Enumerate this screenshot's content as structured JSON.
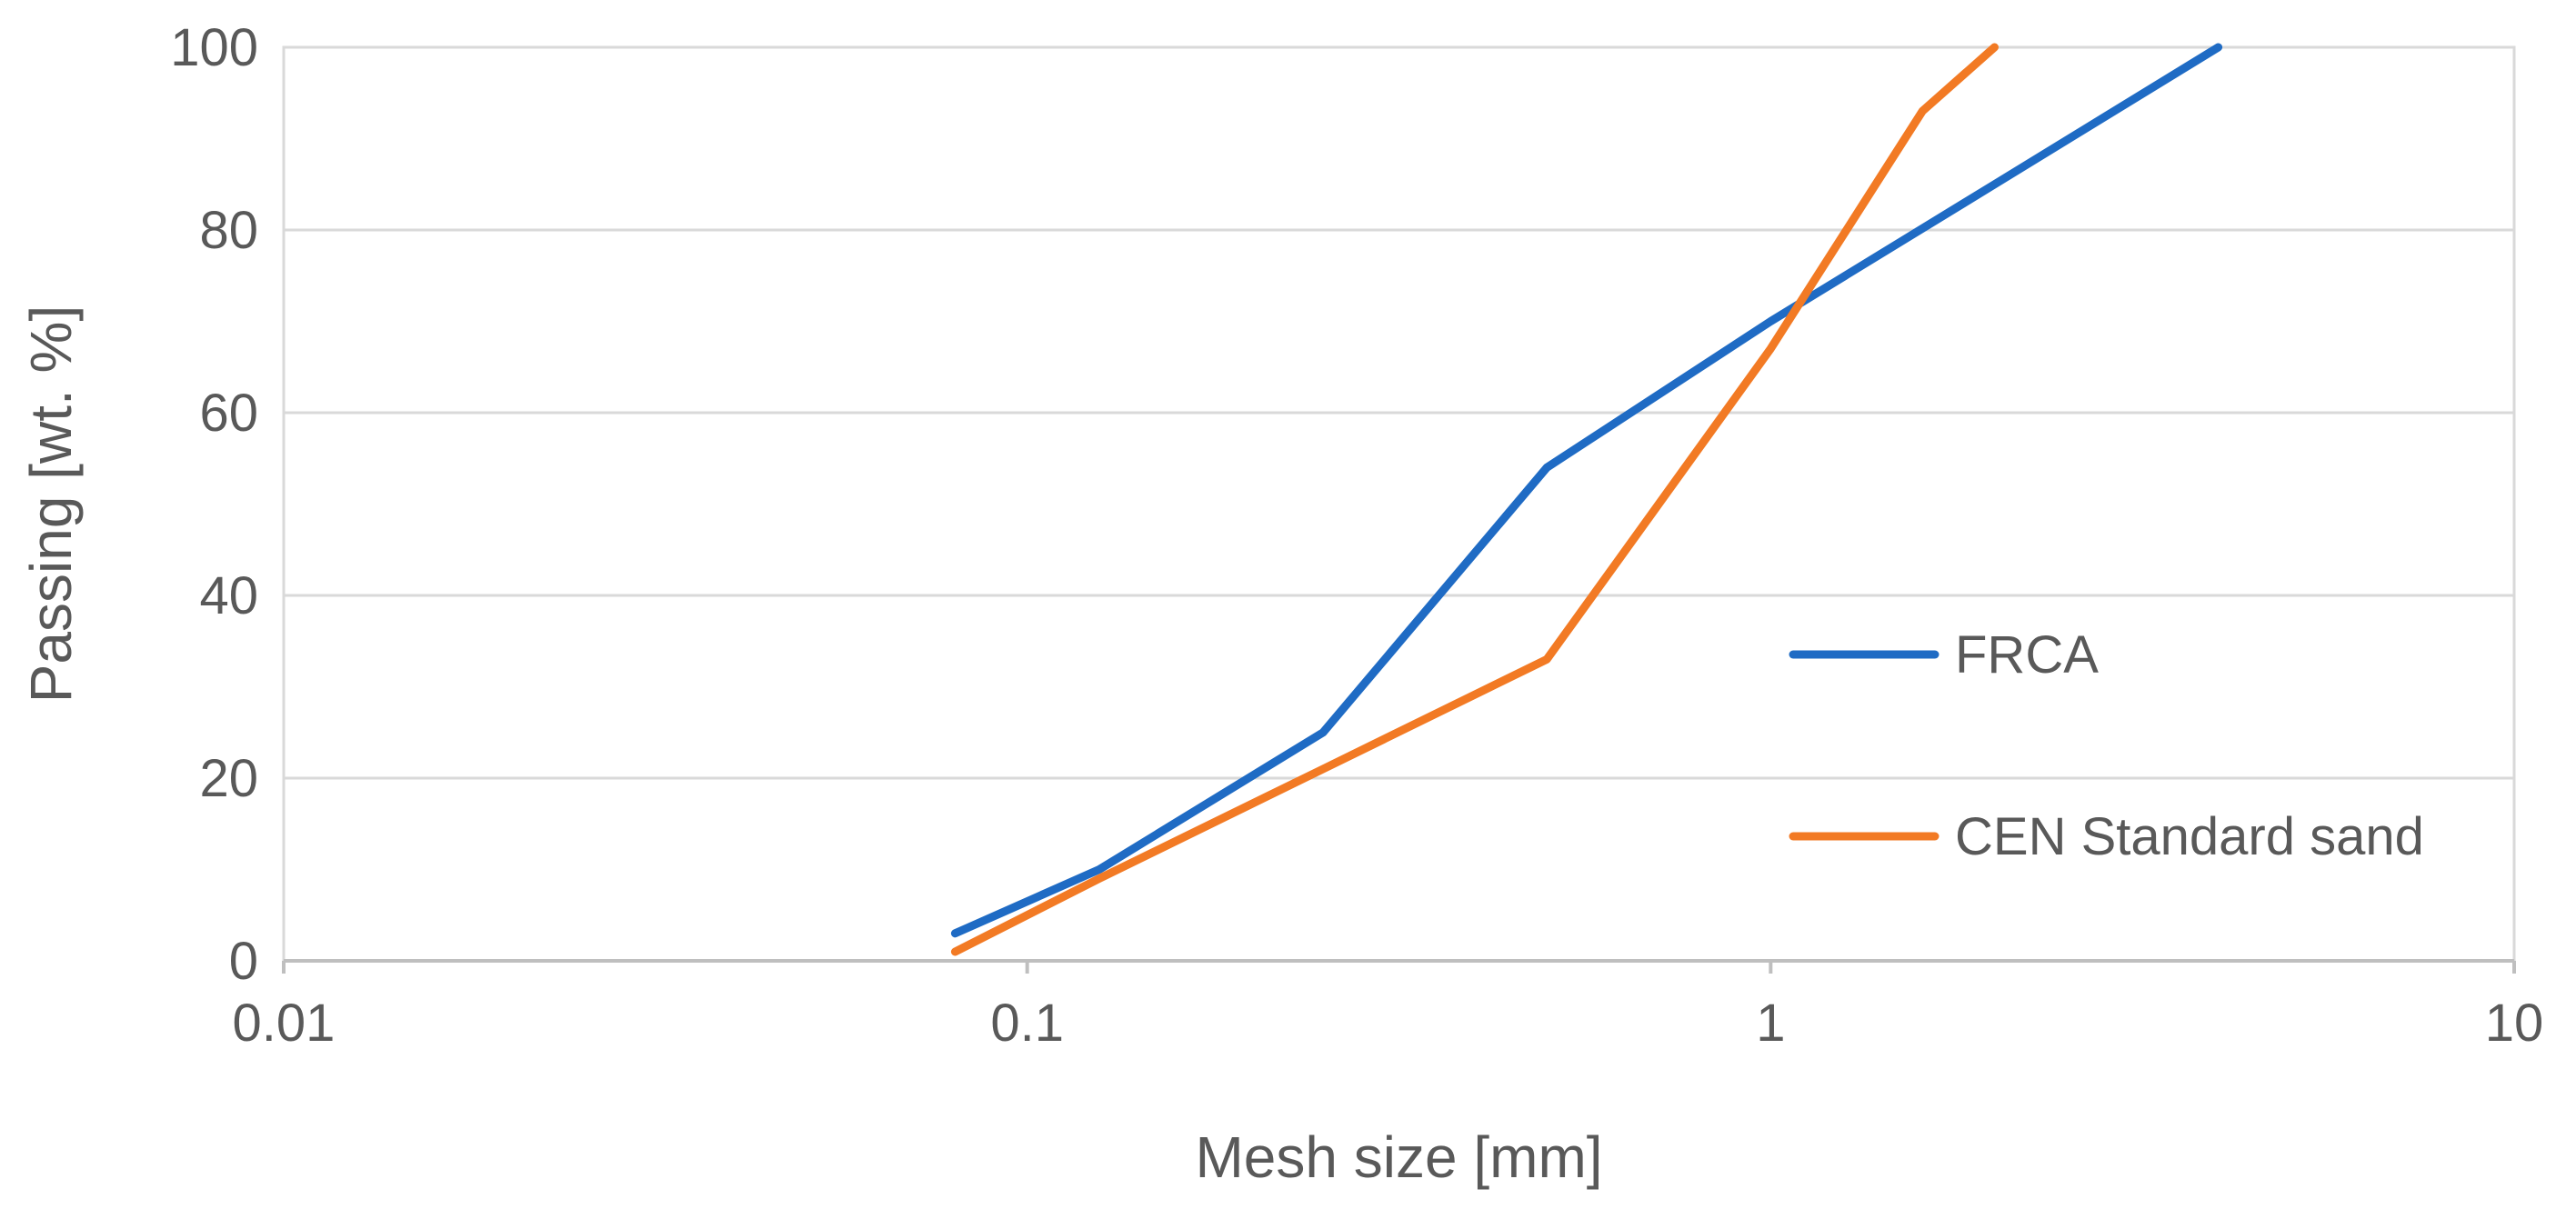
{
  "chart_data": {
    "type": "line",
    "title": "",
    "xlabel": "Mesh size [mm]",
    "ylabel": "Passing [wt. %]",
    "xscale": "log",
    "xlim": [
      0.01,
      10
    ],
    "ylim": [
      0,
      100
    ],
    "x_ticks": [
      0.01,
      0.1,
      1,
      10
    ],
    "x_tick_labels": [
      "0.01",
      "0.1",
      "1",
      "10"
    ],
    "y_ticks": [
      0,
      20,
      40,
      60,
      80,
      100
    ],
    "y_tick_labels": [
      "0",
      "20",
      "40",
      "60",
      "80",
      "100"
    ],
    "grid": "horizontal major gridlines",
    "legend_position": "right, inside plot area",
    "series": [
      {
        "name": "FRCA",
        "color": "#1F6BC4",
        "x": [
          0.08,
          0.125,
          0.25,
          0.5,
          1,
          2,
          4
        ],
        "y": [
          3,
          10,
          25,
          54,
          70,
          85,
          100
        ]
      },
      {
        "name": "CEN Standard sand",
        "color": "#F27A24",
        "x": [
          0.08,
          0.125,
          0.25,
          0.5,
          1,
          1.6,
          2
        ],
        "y": [
          1,
          9,
          21,
          33,
          67,
          93,
          100
        ]
      }
    ]
  }
}
